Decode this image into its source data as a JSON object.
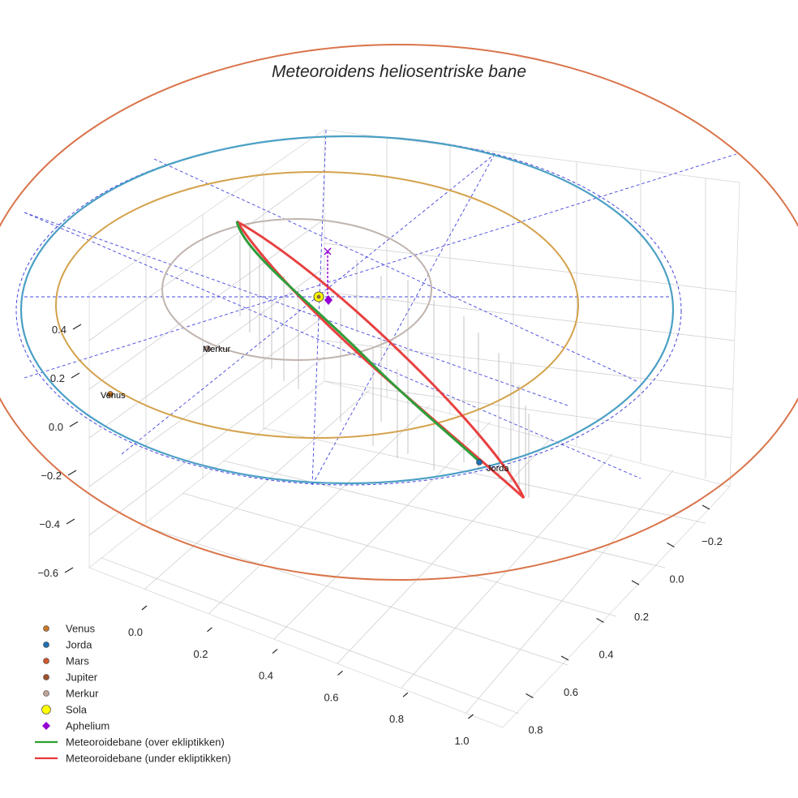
{
  "chart_data": {
    "type": "line",
    "projection": "3d",
    "title": "Meteoroidens heliosentriske bane",
    "axes": {
      "x": {
        "ticks": [
          "0.0",
          "0.2",
          "0.4",
          "0.6",
          "0.8",
          "1.0"
        ]
      },
      "y": {
        "ticks": [
          "−0.2",
          "0.0",
          "0.2",
          "0.4",
          "0.6",
          "0.8"
        ]
      },
      "z": {
        "ticks": [
          "−0.6",
          "−0.4",
          "−0.2",
          "0.0",
          "0.2",
          "0.4"
        ]
      }
    },
    "grid": true,
    "legend_position": "bottom-left",
    "planet_labels": [
      {
        "name": "Venus"
      },
      {
        "name": "Jorda"
      },
      {
        "name": "Merkur"
      }
    ],
    "legend": [
      {
        "label": "Venus",
        "marker": "circle",
        "color": "#c9782a"
      },
      {
        "label": "Jorda",
        "marker": "circle",
        "color": "#1f6fb2"
      },
      {
        "label": "Mars",
        "marker": "circle",
        "color": "#d0582e"
      },
      {
        "label": "Jupiter",
        "marker": "circle",
        "color": "#a0522d"
      },
      {
        "label": "Merkur",
        "marker": "circle",
        "color": "#bfa59a"
      },
      {
        "label": "Sola",
        "marker": "circle",
        "color": "#ffff00"
      },
      {
        "label": "Aphelium",
        "marker": "diamond",
        "color": "#9400d3"
      },
      {
        "label": "Meteoroidebane (over ekliptikken)",
        "marker": "line",
        "color": "#2ca02c"
      },
      {
        "label": "Meteoroidebane (under ekliptikken)",
        "marker": "line",
        "color": "#e8383a"
      }
    ],
    "orbit_colors": {
      "venus": "#d4a24c",
      "earth": "#4a9fc4",
      "mars": "#d9744a",
      "mercury": "#c0b4ae",
      "meteoroid_above": "#2f9e3a",
      "meteoroid_below": "#e84040",
      "reference": "#4444dd"
    }
  }
}
